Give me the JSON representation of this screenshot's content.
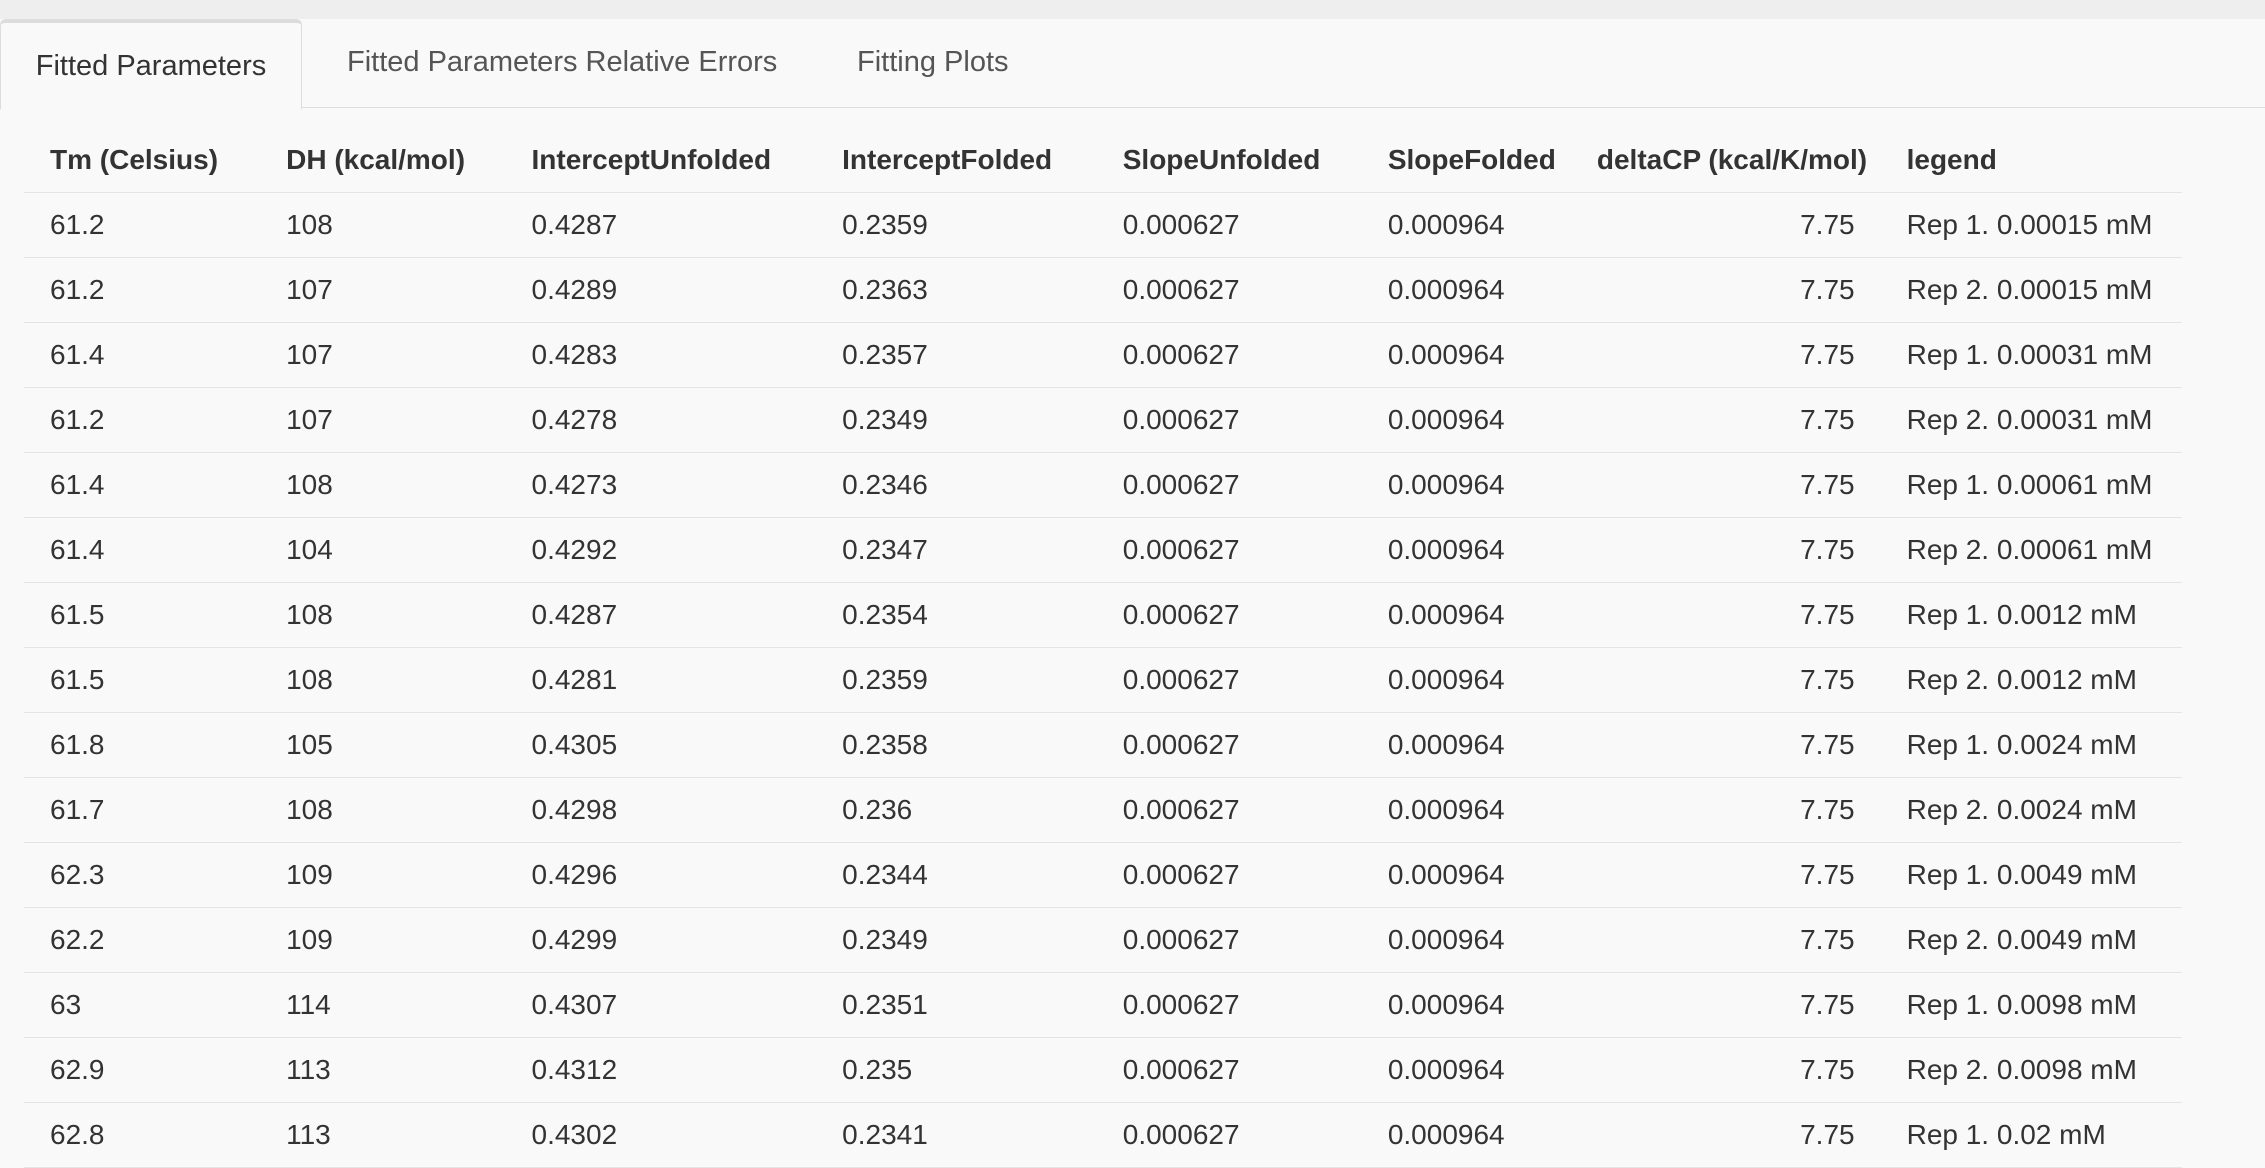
{
  "tabs": [
    {
      "label": "Fitted Parameters",
      "active": true
    },
    {
      "label": "Fitted Parameters Relative Errors",
      "active": false
    },
    {
      "label": "Fitting Plots",
      "active": false
    }
  ],
  "table": {
    "columns": [
      "Tm (Celsius)",
      "DH (kcal/mol)",
      "InterceptUnfolded",
      "InterceptFolded",
      "SlopeUnfolded",
      "SlopeFolded",
      "deltaCP (kcal/K/mol)",
      "legend"
    ],
    "rows": [
      [
        "61.2",
        "108",
        "0.4287",
        "0.2359",
        "0.000627",
        "0.000964",
        "7.75",
        "Rep 1. 0.00015 mM"
      ],
      [
        "61.2",
        "107",
        "0.4289",
        "0.2363",
        "0.000627",
        "0.000964",
        "7.75",
        "Rep 2. 0.00015 mM"
      ],
      [
        "61.4",
        "107",
        "0.4283",
        "0.2357",
        "0.000627",
        "0.000964",
        "7.75",
        "Rep 1. 0.00031 mM"
      ],
      [
        "61.2",
        "107",
        "0.4278",
        "0.2349",
        "0.000627",
        "0.000964",
        "7.75",
        "Rep 2. 0.00031 mM"
      ],
      [
        "61.4",
        "108",
        "0.4273",
        "0.2346",
        "0.000627",
        "0.000964",
        "7.75",
        "Rep 1. 0.00061 mM"
      ],
      [
        "61.4",
        "104",
        "0.4292",
        "0.2347",
        "0.000627",
        "0.000964",
        "7.75",
        "Rep 2. 0.00061 mM"
      ],
      [
        "61.5",
        "108",
        "0.4287",
        "0.2354",
        "0.000627",
        "0.000964",
        "7.75",
        "Rep 1. 0.0012 mM"
      ],
      [
        "61.5",
        "108",
        "0.4281",
        "0.2359",
        "0.000627",
        "0.000964",
        "7.75",
        "Rep 2. 0.0012 mM"
      ],
      [
        "61.8",
        "105",
        "0.4305",
        "0.2358",
        "0.000627",
        "0.000964",
        "7.75",
        "Rep 1. 0.0024 mM"
      ],
      [
        "61.7",
        "108",
        "0.4298",
        "0.236",
        "0.000627",
        "0.000964",
        "7.75",
        "Rep 2. 0.0024 mM"
      ],
      [
        "62.3",
        "109",
        "0.4296",
        "0.2344",
        "0.000627",
        "0.000964",
        "7.75",
        "Rep 1. 0.0049 mM"
      ],
      [
        "62.2",
        "109",
        "0.4299",
        "0.2349",
        "0.000627",
        "0.000964",
        "7.75",
        "Rep 2. 0.0049 mM"
      ],
      [
        "63",
        "114",
        "0.4307",
        "0.2351",
        "0.000627",
        "0.000964",
        "7.75",
        "Rep 1. 0.0098 mM"
      ],
      [
        "62.9",
        "113",
        "0.4312",
        "0.235",
        "0.000627",
        "0.000964",
        "7.75",
        "Rep 2. 0.0098 mM"
      ],
      [
        "62.8",
        "113",
        "0.4302",
        "0.2341",
        "0.000627",
        "0.000964",
        "7.75",
        "Rep 1. 0.02 mM"
      ]
    ]
  }
}
